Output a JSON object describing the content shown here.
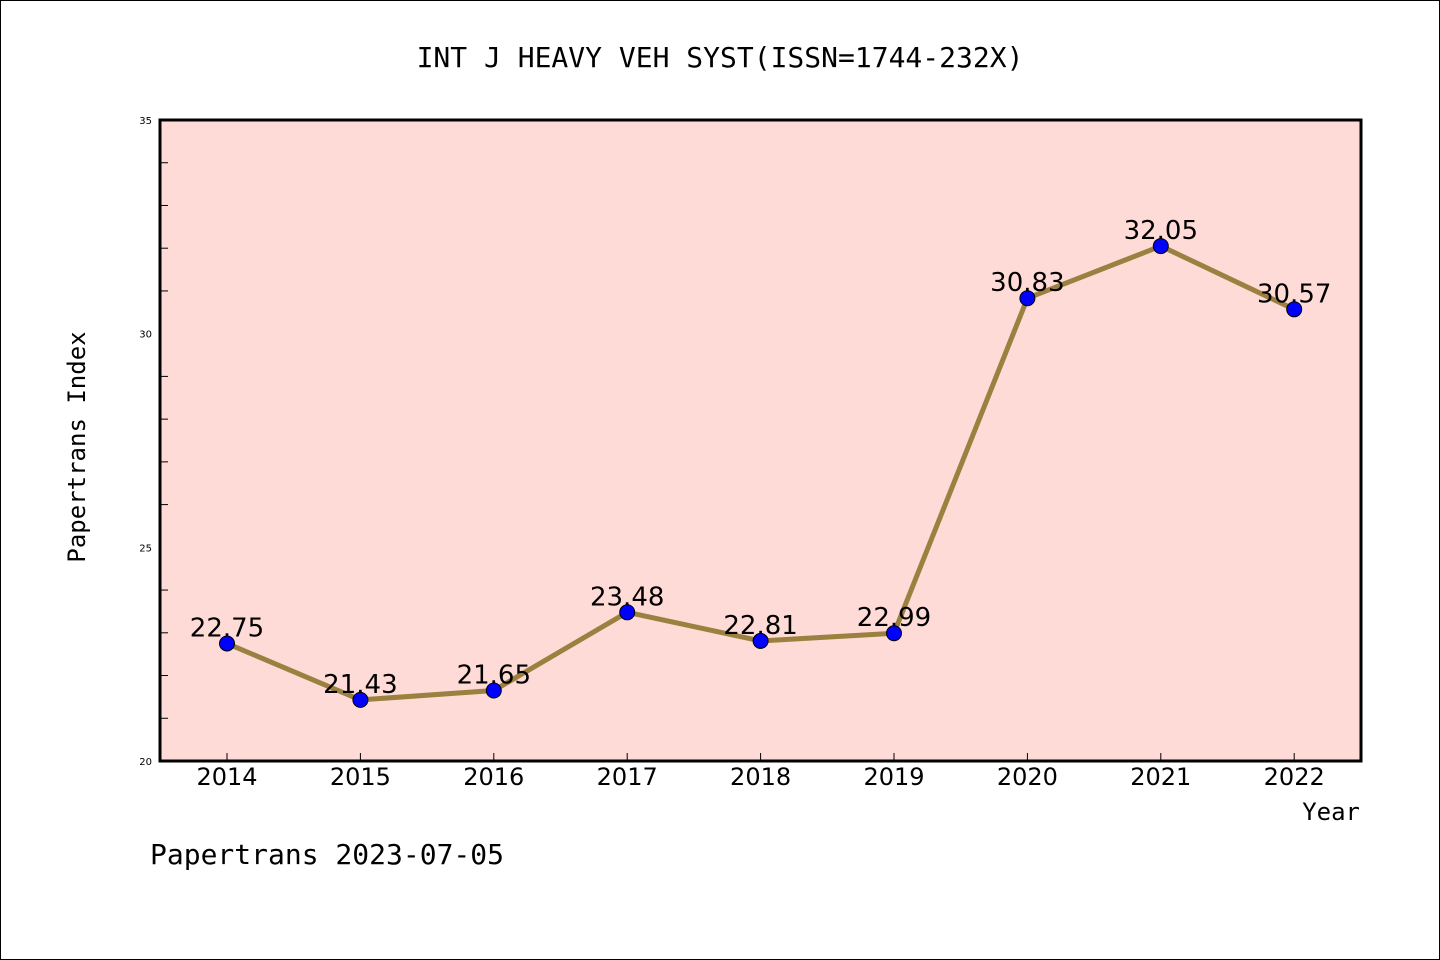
{
  "chart_data": {
    "type": "line",
    "title": "INT J HEAVY VEH SYST(ISSN=1744-232X)",
    "xlabel": "Year",
    "ylabel": "Papertrans Index",
    "footer": "Papertrans 2023-07-05",
    "categories": [
      "2014",
      "2015",
      "2016",
      "2017",
      "2018",
      "2019",
      "2020",
      "2021",
      "2022"
    ],
    "values": [
      22.75,
      21.43,
      21.65,
      23.48,
      22.81,
      22.99,
      30.83,
      32.05,
      30.57
    ],
    "value_labels": [
      "22.75",
      "21.43",
      "21.65",
      "23.48",
      "22.81",
      "22.99",
      "30.83",
      "32.05",
      "30.57"
    ],
    "ylim": [
      20,
      35
    ],
    "yticks": [
      "20",
      "25",
      "30",
      "35"
    ],
    "grid": false,
    "colors": {
      "plot_background": "#ffdbd8",
      "line": "#9b8040",
      "marker": "#0000ff",
      "text": "#000000"
    }
  }
}
